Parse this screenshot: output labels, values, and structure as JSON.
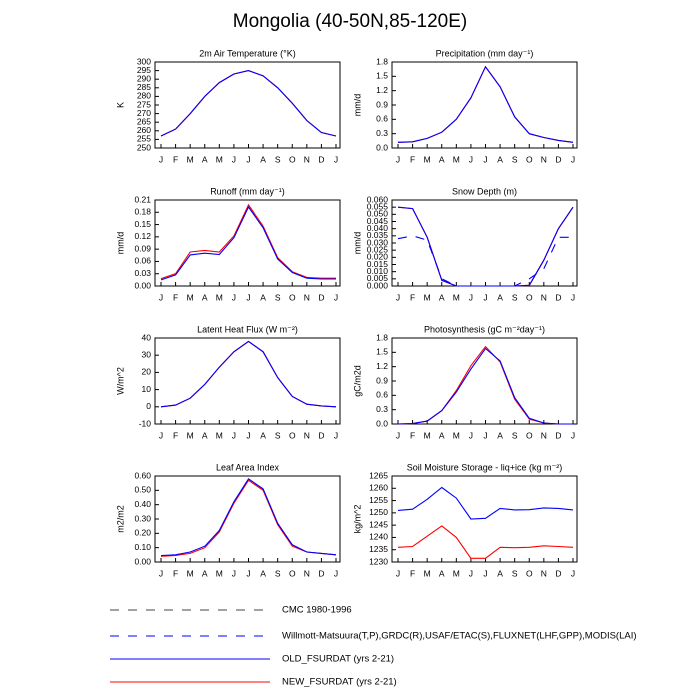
{
  "title": "Mongolia (40-50N,85-120E)",
  "legend": [
    {
      "name": "CMC 1980-1996",
      "color": "#444444",
      "dash": "dashed"
    },
    {
      "name": "Willmott-Matsuura(T,P),GRDC(R),USAF/ETAC(S),FLUXNET(LHF,GPP),MODIS(LAI)",
      "color": "#0000ff",
      "dash": "dashed"
    },
    {
      "name": "OLD_FSURDAT (yrs 2-21)",
      "color": "#0000ff",
      "dash": "solid"
    },
    {
      "name": "NEW_FSURDAT (yrs 2-21)",
      "color": "#ff0000",
      "dash": "solid"
    }
  ],
  "chart_data": [
    {
      "type": "line",
      "title": "2m Air Temperature (°K)",
      "y_label": "K",
      "categories": [
        "J",
        "F",
        "M",
        "A",
        "M",
        "J",
        "J",
        "A",
        "S",
        "O",
        "N",
        "D",
        "J"
      ],
      "ylim": [
        250,
        300
      ],
      "yticks": [
        250,
        255,
        260,
        265,
        270,
        275,
        280,
        285,
        290,
        295,
        300
      ],
      "series": [
        {
          "name": "NEW_FSURDAT (yrs 2-21)",
          "color": "#ff0000",
          "values": [
            257,
            261,
            270,
            280,
            288,
            293,
            295,
            292,
            285,
            276,
            266,
            259,
            257
          ]
        },
        {
          "name": "OLD_FSURDAT (yrs 2-21)",
          "color": "#0000ff",
          "values": [
            257,
            261,
            270,
            280,
            288,
            293,
            295,
            292,
            285,
            276,
            266,
            259,
            257
          ]
        }
      ]
    },
    {
      "type": "line",
      "title": "Precipitation (mm day⁻¹)",
      "y_label": "mm/d",
      "categories": [
        "J",
        "F",
        "M",
        "A",
        "M",
        "J",
        "J",
        "A",
        "S",
        "O",
        "N",
        "D",
        "J"
      ],
      "ylim": [
        0,
        1.8
      ],
      "yticks": [
        {
          "value": 0,
          "label": "0.0"
        },
        0.3,
        0.6,
        0.9,
        1.2,
        1.5,
        1.8
      ],
      "series": [
        {
          "name": "NEW_FSURDAT (yrs 2-21)",
          "color": "#ff0000",
          "values": [
            0.12,
            0.13,
            0.2,
            0.33,
            0.6,
            1.05,
            1.7,
            1.28,
            0.65,
            0.3,
            0.22,
            0.16,
            0.12
          ]
        },
        {
          "name": "OLD_FSURDAT (yrs 2-21)",
          "color": "#0000ff",
          "values": [
            0.12,
            0.13,
            0.2,
            0.33,
            0.6,
            1.05,
            1.7,
            1.28,
            0.65,
            0.3,
            0.22,
            0.16,
            0.12
          ]
        }
      ]
    },
    {
      "type": "line",
      "title": "Runoff (mm day⁻¹)",
      "y_label": "mm/d",
      "categories": [
        "J",
        "F",
        "M",
        "A",
        "M",
        "J",
        "J",
        "A",
        "S",
        "O",
        "N",
        "D",
        "J"
      ],
      "ylim": [
        0,
        0.21
      ],
      "yticks": [
        {
          "value": 0,
          "label": "0.00"
        },
        0.03,
        0.06,
        0.09,
        0.12,
        0.15,
        0.18,
        0.21
      ],
      "series": [
        {
          "name": "NEW_FSURDAT (yrs 2-21)",
          "color": "#ff0000",
          "values": [
            0.018,
            0.03,
            0.083,
            0.087,
            0.083,
            0.122,
            0.198,
            0.146,
            0.069,
            0.035,
            0.021,
            0.019,
            0.019
          ]
        },
        {
          "name": "OLD_FSURDAT (yrs 2-21)",
          "color": "#0000ff",
          "values": [
            0.015,
            0.027,
            0.076,
            0.08,
            0.077,
            0.118,
            0.193,
            0.142,
            0.066,
            0.033,
            0.019,
            0.017,
            0.017
          ]
        }
      ]
    },
    {
      "type": "line",
      "title": "Snow Depth (m)",
      "y_label": "mm/d",
      "categories": [
        "J",
        "F",
        "M",
        "A",
        "M",
        "J",
        "J",
        "A",
        "S",
        "O",
        "N",
        "D",
        "J"
      ],
      "ylim": [
        0,
        0.06
      ],
      "yticks": [
        {
          "value": 0,
          "label": "0.000"
        },
        0.005,
        {
          "value": 0.01,
          "label": "0.010"
        },
        0.015,
        {
          "value": 0.02,
          "label": "0.020"
        },
        0.025,
        {
          "value": 0.03,
          "label": "0.030"
        },
        0.035,
        {
          "value": 0.04,
          "label": "0.040"
        },
        0.045,
        {
          "value": 0.05,
          "label": "0.050"
        },
        0.055,
        {
          "value": 0.06,
          "label": "0.060"
        }
      ],
      "series": [
        {
          "name": "Willmott-Matsuura(T,P),GRDC(R),USAF/ETAC(S),FLUXNET(LHF,GPP),MODIS(LAI)",
          "color": "#0000ff",
          "values": [
            0.033,
            0.035,
            0.032,
            0.005,
            0,
            0,
            0,
            0,
            0,
            0.005,
            0.012,
            0.034,
            0.034
          ]
        },
        {
          "name": "NEW_FSURDAT (yrs 2-21)",
          "color": "#ff0000",
          "values": [
            0.055,
            0.054,
            0.034,
            0.004,
            0,
            0,
            0,
            0,
            0,
            0.0005,
            0.018,
            0.04,
            0.055
          ]
        },
        {
          "name": "OLD_FSURDAT (yrs 2-21)",
          "color": "#0000ff",
          "values": [
            0.055,
            0.054,
            0.034,
            0.004,
            0,
            0,
            0,
            0,
            0,
            0.0005,
            0.018,
            0.04,
            0.055
          ]
        }
      ]
    },
    {
      "type": "line",
      "title": "Latent Heat Flux (W m⁻²)",
      "y_label": "W/m^2",
      "categories": [
        "J",
        "F",
        "M",
        "A",
        "M",
        "J",
        "J",
        "A",
        "S",
        "O",
        "N",
        "D",
        "J"
      ],
      "ylim": [
        -10,
        40
      ],
      "yticks": [
        -10,
        0,
        10,
        20,
        30,
        40
      ],
      "series": [
        {
          "name": "NEW_FSURDAT (yrs 2-21)",
          "color": "#ff0000",
          "values": [
            0,
            1,
            5,
            13,
            23,
            32,
            38,
            32,
            17,
            6,
            1.5,
            0.5,
            0
          ]
        },
        {
          "name": "OLD_FSURDAT (yrs 2-21)",
          "color": "#0000ff",
          "values": [
            0,
            1,
            5,
            13,
            23,
            32,
            38,
            32,
            17,
            6,
            1.5,
            0.5,
            0
          ]
        }
      ]
    },
    {
      "type": "line",
      "title": "Photosynthesis (gC m⁻²day⁻¹)",
      "y_label": "gC/m2d",
      "categories": [
        "J",
        "F",
        "M",
        "A",
        "M",
        "J",
        "J",
        "A",
        "S",
        "O",
        "N",
        "D",
        "J"
      ],
      "ylim": [
        0,
        1.8
      ],
      "yticks": [
        {
          "value": 0,
          "label": "0.0"
        },
        0.3,
        0.6,
        0.9,
        1.2,
        1.5,
        1.8
      ],
      "series": [
        {
          "name": "NEW_FSURDAT (yrs 2-21)",
          "color": "#ff0000",
          "values": [
            0,
            0.01,
            0.06,
            0.28,
            0.7,
            1.22,
            1.62,
            1.3,
            0.52,
            0.1,
            0.02,
            0,
            0
          ]
        },
        {
          "name": "OLD_FSURDAT (yrs 2-21)",
          "color": "#0000ff",
          "values": [
            0,
            0.01,
            0.06,
            0.28,
            0.67,
            1.15,
            1.58,
            1.32,
            0.55,
            0.12,
            0.02,
            0,
            0
          ]
        }
      ]
    },
    {
      "type": "line",
      "title": "Leaf Area Index",
      "y_label": "m2/m2",
      "categories": [
        "J",
        "F",
        "M",
        "A",
        "M",
        "J",
        "J",
        "A",
        "S",
        "O",
        "N",
        "D",
        "J"
      ],
      "ylim": [
        0,
        0.6
      ],
      "yticks": [
        {
          "value": 0,
          "label": "0.00"
        },
        {
          "value": 0.1,
          "label": "0.10"
        },
        {
          "value": 0.2,
          "label": "0.20"
        },
        {
          "value": 0.3,
          "label": "0.30"
        },
        {
          "value": 0.4,
          "label": "0.40"
        },
        {
          "value": 0.5,
          "label": "0.50"
        },
        {
          "value": 0.6,
          "label": "0.60"
        }
      ],
      "series": [
        {
          "name": "NEW_FSURDAT (yrs 2-21)",
          "color": "#ff0000",
          "values": [
            0.04,
            0.045,
            0.06,
            0.1,
            0.21,
            0.41,
            0.57,
            0.5,
            0.26,
            0.11,
            0.07,
            0.06,
            0.05
          ]
        },
        {
          "name": "OLD_FSURDAT (yrs 2-21)",
          "color": "#0000ff",
          "values": [
            0.045,
            0.05,
            0.07,
            0.11,
            0.22,
            0.42,
            0.58,
            0.51,
            0.27,
            0.12,
            0.07,
            0.06,
            0.05
          ]
        }
      ]
    },
    {
      "type": "line",
      "title": "Soil Moisture Storage - liq+ice (kg m⁻²)",
      "y_label": "kg/m^2",
      "categories": [
        "J",
        "F",
        "M",
        "A",
        "M",
        "J",
        "J",
        "A",
        "S",
        "O",
        "N",
        "D",
        "J"
      ],
      "ylim": [
        1230,
        1265
      ],
      "yticks": [
        1230,
        1235,
        1240,
        1245,
        1250,
        1255,
        1260,
        1265
      ],
      "series": [
        {
          "name": "NEW_FSURDAT (yrs 2-21)",
          "color": "#ff0000",
          "values": [
            1236,
            1236.3,
            1240.5,
            1244.7,
            1240,
            1231.5,
            1231.5,
            1236,
            1235.8,
            1236,
            1236.6,
            1236.3,
            1236
          ]
        },
        {
          "name": "OLD_FSURDAT (yrs 2-21)",
          "color": "#0000ff",
          "values": [
            1251,
            1251.5,
            1255.5,
            1260.3,
            1256,
            1247.5,
            1247.8,
            1251.8,
            1251.2,
            1251.3,
            1252,
            1251.8,
            1251.2
          ]
        }
      ]
    }
  ]
}
